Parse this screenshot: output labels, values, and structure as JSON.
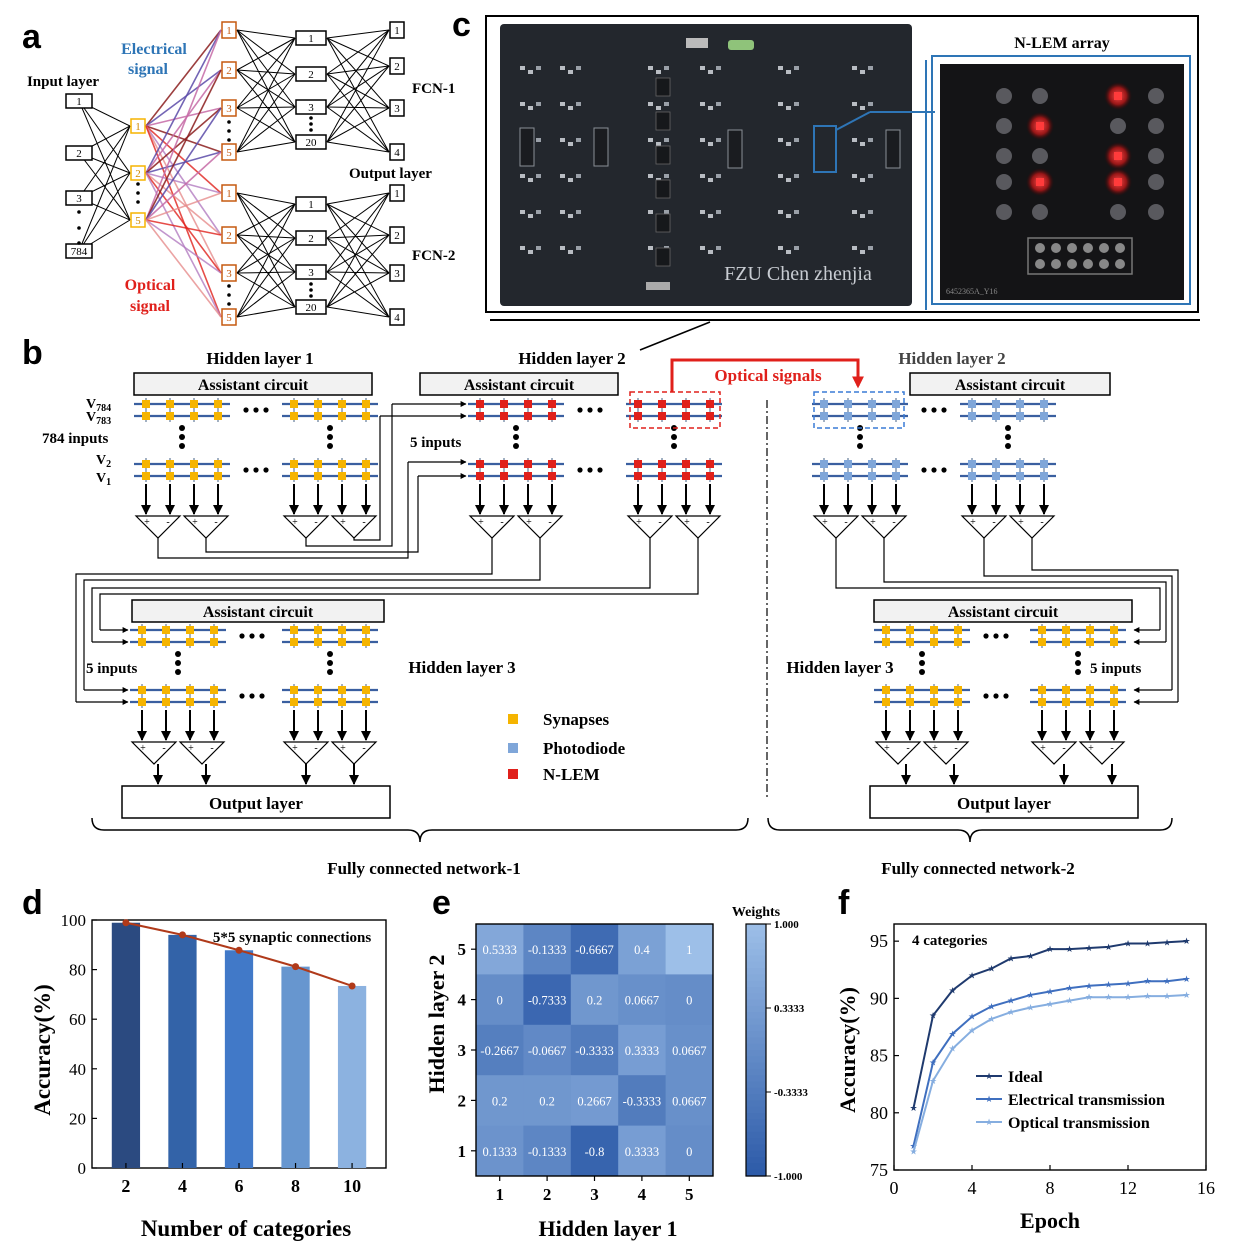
{
  "panel_labels": {
    "a": "a",
    "b": "b",
    "c": "c",
    "d": "d",
    "e": "e",
    "f": "f"
  },
  "panel_a": {
    "electrical_signal": [
      "Electrical",
      "signal"
    ],
    "optical_signal": [
      "Optical",
      "signal"
    ],
    "input_layer": "Input layer",
    "input_nodes": [
      "1",
      "2",
      "3",
      "784"
    ],
    "hidden_nodes": [
      "1",
      "2",
      "5"
    ],
    "fcn_nodes_5": [
      "1",
      "2",
      "3",
      "5"
    ],
    "fcn_nodes_20": [
      "1",
      "2",
      "3",
      "20"
    ],
    "out_nodes": [
      "1",
      "2",
      "3",
      "4"
    ],
    "fcn1": "FCN-1",
    "fcn2": "FCN-2",
    "output_layer": "Output layer",
    "colors": {
      "electrical": "#2e75b6",
      "optical": "#e0201b",
      "hidden_border": "#f5b400",
      "fcn_border": "#c55a11"
    }
  },
  "panel_b": {
    "hidden1": "Hidden layer 1",
    "hidden2": "Hidden layer 2",
    "hidden2_right": "Hidden layer 2",
    "hidden3": "Hidden layer 3",
    "hidden3_right": "Hidden layer 3",
    "assistant": "Assistant circuit",
    "optical_signals": "Optical signals",
    "v784": "V784",
    "v783": "V783",
    "v2": "V2",
    "v1": "V1",
    "inputs784": "784 inputs",
    "inputs5": "5 inputs",
    "legend": {
      "synapses": "Synapses",
      "photodiode": "Photodiode",
      "nlem": "N-LEM"
    },
    "output_layer": "Output layer",
    "fcn1": "Fully connected network-1",
    "fcn2": "Fully connected network-2",
    "colors": {
      "synapse": "#f5b400",
      "photodiode": "#7fa6d9",
      "nlem": "#e0201b",
      "line": "#3a5fa0"
    }
  },
  "panel_c": {
    "board_text": "FZU Chen zhenjia",
    "array_title": "N-LEM array",
    "chip_label": "6452365A_Y16"
  },
  "panel_d": {
    "annotation": "5*5 synaptic connections",
    "chart_data": {
      "type": "bar",
      "categories": [
        "2",
        "4",
        "6",
        "8",
        "10"
      ],
      "values": [
        98.9,
        94.0,
        87.8,
        81.2,
        73.4
      ],
      "ylim": [
        0,
        100
      ],
      "yticks": [
        "0",
        "20",
        "40",
        "60",
        "80",
        "100"
      ],
      "xlabel": "Number of categories",
      "ylabel": "Accuracy(%)",
      "bar_colors": [
        "#2b4a80",
        "#3363a8",
        "#4179c8",
        "#6796cf",
        "#8cb2e0"
      ],
      "line_color": "#b03a1a"
    }
  },
  "panel_e": {
    "chart_data": {
      "type": "heatmap",
      "xlabel": "Hidden layer 1",
      "ylabel": "Hidden layer 2",
      "colorbar_title": "Weights",
      "colorbar_ticks": [
        "1.000",
        "0.3333",
        "-0.3333",
        "-1.000"
      ],
      "x": [
        "1",
        "2",
        "3",
        "4",
        "5"
      ],
      "y": [
        "5",
        "4",
        "3",
        "2",
        "1"
      ],
      "values": [
        [
          0.5333,
          -0.1333,
          -0.6667,
          0.4,
          1
        ],
        [
          0,
          -0.7333,
          0.2,
          0.0667,
          0
        ],
        [
          -0.2667,
          -0.0667,
          -0.3333,
          0.3333,
          0.0667
        ],
        [
          0.2,
          0.2,
          0.2667,
          -0.3333,
          0.0667
        ],
        [
          0.1333,
          -0.1333,
          -0.8,
          0.3333,
          0
        ]
      ],
      "labels": [
        [
          "0.5333",
          "-0.1333",
          "-0.6667",
          "0.4",
          "1"
        ],
        [
          "0",
          "-0.7333",
          "0.2",
          "0.0667",
          "0"
        ],
        [
          "-0.2667",
          "-0.0667",
          "-0.3333",
          "0.3333",
          "0.0667"
        ],
        [
          "0.2",
          "0.2",
          "0.2667",
          "-0.3333",
          "0.0667"
        ],
        [
          "0.1333",
          "-0.1333",
          "-0.8",
          "0.3333",
          "0"
        ]
      ],
      "vmin": -1,
      "vmax": 1,
      "color_low": "#2c5aa8",
      "color_high": "#9dbfe8"
    }
  },
  "panel_f": {
    "annotation": "4 categories",
    "chart_data": {
      "type": "line",
      "xlabel": "Epoch",
      "ylabel": "Accuracy(%)",
      "xlim": [
        0,
        16
      ],
      "ylim": [
        75,
        96.5
      ],
      "xticks": [
        "0",
        "4",
        "8",
        "12",
        "16"
      ],
      "yticks": [
        "75",
        "80",
        "85",
        "90",
        "95"
      ],
      "x": [
        1,
        2,
        3,
        4,
        5,
        6,
        7,
        8,
        9,
        10,
        11,
        12,
        13,
        14,
        15
      ],
      "series": [
        {
          "name": "Ideal",
          "color": "#1f3a6e",
          "values": [
            80.4,
            88.5,
            90.7,
            92.0,
            92.6,
            93.5,
            93.7,
            94.3,
            94.3,
            94.4,
            94.5,
            94.8,
            94.8,
            94.9,
            95.0
          ]
        },
        {
          "name": "Electrical transmission",
          "color": "#3f6fbf",
          "values": [
            77.1,
            84.4,
            86.9,
            88.4,
            89.3,
            89.8,
            90.3,
            90.6,
            90.9,
            91.1,
            91.2,
            91.3,
            91.5,
            91.5,
            91.7
          ]
        },
        {
          "name": "Optical transmission",
          "color": "#86aee0",
          "values": [
            76.6,
            82.8,
            85.6,
            87.2,
            88.2,
            88.8,
            89.2,
            89.5,
            89.8,
            90.1,
            90.1,
            90.1,
            90.2,
            90.2,
            90.3
          ]
        }
      ]
    }
  }
}
